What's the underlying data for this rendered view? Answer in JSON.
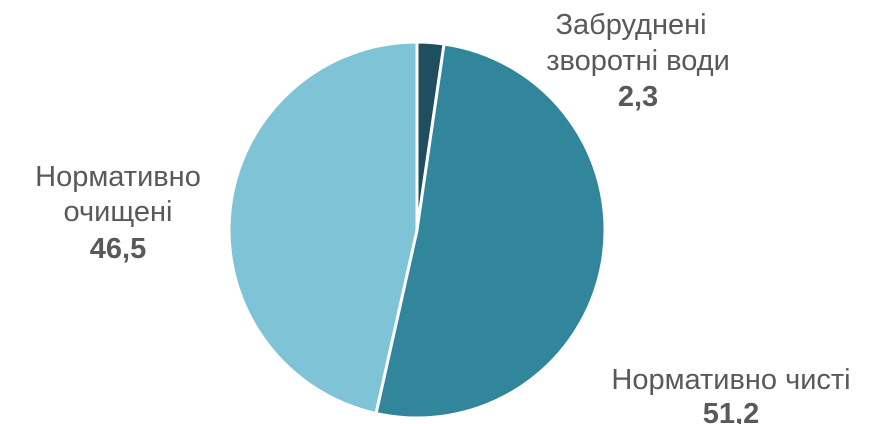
{
  "chart_data": {
    "type": "pie",
    "title": "",
    "start": "top",
    "direction": "clockwise",
    "slices": [
      {
        "label_lines": [
          "Забруднені",
          "зворотні води"
        ],
        "value": 2.3,
        "value_text": "2,3",
        "color": "#1f4e5f"
      },
      {
        "label_lines": [
          "Нормативно чисті"
        ],
        "value": 51.2,
        "value_text": "51,2",
        "color": "#31869b"
      },
      {
        "label_lines": [
          "Нормативно",
          "очищені"
        ],
        "value": 46.5,
        "value_text": "46,5",
        "color": "#7fc3d6"
      }
    ],
    "slice_border_color": "#ffffff",
    "label_color": "#595959"
  }
}
